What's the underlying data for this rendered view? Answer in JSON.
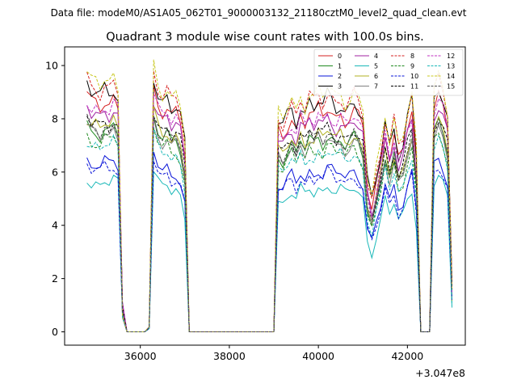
{
  "figure": {
    "suptitle": "Data file: modeM0/AS1A05_062T01_9000003132_21180cztM0_level2_quad_clean.evt"
  },
  "chart_data": {
    "type": "line",
    "title": "Quadrant 3 module wise count rates with 100.0s bins.",
    "xlabel": "",
    "ylabel": "",
    "x_offset_label": "+3.047e8",
    "xlim": [
      34300,
      43300
    ],
    "ylim": [
      -0.5,
      10.7
    ],
    "xticks": [
      36000,
      38000,
      40000,
      42000
    ],
    "xtick_labels": [
      "36000",
      "38000",
      "40000",
      "42000"
    ],
    "yticks": [
      0,
      2,
      4,
      6,
      8,
      10
    ],
    "ytick_labels": [
      "0",
      "2",
      "4",
      "6",
      "8",
      "10"
    ],
    "grid": false,
    "legend_position": "top-right",
    "x": [
      34800,
      34900,
      35000,
      35100,
      35200,
      35300,
      35400,
      35500,
      35600,
      35700,
      35800,
      35900,
      36000,
      36100,
      36200,
      36300,
      36400,
      36500,
      36600,
      36700,
      36800,
      36900,
      37000,
      37100,
      37200,
      37300,
      37400,
      37500,
      37600,
      37700,
      37800,
      37900,
      38000,
      38100,
      38200,
      38300,
      38400,
      38500,
      38600,
      38700,
      38800,
      38900,
      39000,
      39100,
      39200,
      39300,
      39400,
      39500,
      39600,
      39700,
      39800,
      39900,
      40000,
      40100,
      40200,
      40300,
      40400,
      40500,
      40600,
      40700,
      40800,
      40900,
      41000,
      41100,
      41200,
      41300,
      41400,
      41500,
      41600,
      41700,
      41800,
      41900,
      42000,
      42100,
      42200,
      42300,
      42400,
      42500,
      42600,
      42700,
      42800,
      42900,
      43000
    ],
    "base_profile": [
      1,
      0.96,
      0.97,
      0.95,
      0.98,
      0.96,
      0.99,
      0.95,
      0.1,
      0,
      0,
      0,
      0,
      0,
      0.02,
      1.03,
      0.96,
      0.93,
      0.95,
      0.9,
      0.92,
      0.88,
      0.75,
      0,
      0,
      0,
      0,
      0,
      0,
      0,
      0,
      0,
      0,
      0,
      0,
      0,
      0,
      0,
      0,
      0,
      0,
      0,
      0,
      0.85,
      0.83,
      0.87,
      0.9,
      0.85,
      0.92,
      0.88,
      0.93,
      0.9,
      0.94,
      0.91,
      0.95,
      0.93,
      0.9,
      0.92,
      0.89,
      0.91,
      0.93,
      0.9,
      0.86,
      0.6,
      0.52,
      0.62,
      0.72,
      0.85,
      0.75,
      0.83,
      0.72,
      0.76,
      0.86,
      0.93,
      0.7,
      0,
      0,
      0,
      0.95,
      1,
      0.95,
      0.86,
      0.18
    ],
    "series": [
      {
        "name": "0",
        "color": "#d62020",
        "dashed": false,
        "scale": 8.9
      },
      {
        "name": "1",
        "color": "#208a20",
        "dashed": false,
        "scale": 7.8
      },
      {
        "name": "2",
        "color": "#0a14d8",
        "dashed": false,
        "scale": 6.5
      },
      {
        "name": "3",
        "color": "#000000",
        "dashed": false,
        "scale": 9.3
      },
      {
        "name": "4",
        "color": "#a020a0",
        "dashed": false,
        "scale": 8.5
      },
      {
        "name": "5",
        "color": "#1ab8b8",
        "dashed": false,
        "scale": 5.8
      },
      {
        "name": "6",
        "color": "#b0b020",
        "dashed": false,
        "scale": 8.0
      },
      {
        "name": "7",
        "color": "#808080",
        "dashed": false,
        "scale": 7.7
      },
      {
        "name": "8",
        "color": "#d62020",
        "dashed": true,
        "scale": 9.5
      },
      {
        "name": "9",
        "color": "#208a20",
        "dashed": true,
        "scale": 7.4
      },
      {
        "name": "10",
        "color": "#0a14d8",
        "dashed": true,
        "scale": 6.3
      },
      {
        "name": "11",
        "color": "#000000",
        "dashed": true,
        "scale": 8.1
      },
      {
        "name": "12",
        "color": "#c030c0",
        "dashed": true,
        "scale": 8.7
      },
      {
        "name": "13",
        "color": "#1ab8b8",
        "dashed": true,
        "scale": 7.2
      },
      {
        "name": "14",
        "color": "#c8c820",
        "dashed": true,
        "scale": 9.7
      },
      {
        "name": "15",
        "color": "#505050",
        "dashed": true,
        "scale": 7.9
      }
    ]
  }
}
